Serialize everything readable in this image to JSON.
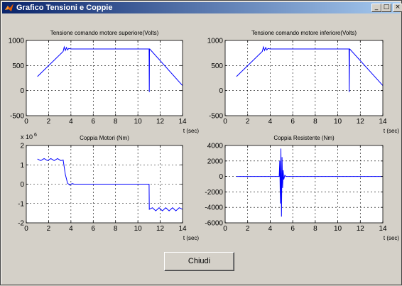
{
  "window": {
    "title": "Grafico Tensioni e Coppie",
    "minimize_glyph": "_",
    "maximize_glyph": "□",
    "close_glyph": "×",
    "icon": "matlab-icon"
  },
  "close_button": {
    "label": "Chiudi"
  },
  "chart_data": [
    {
      "type": "line",
      "title": "Tensione comando motore superiore(Volts)",
      "xlabel": "t (sec)",
      "ylabel": "",
      "xlim": [
        0,
        14
      ],
      "ylim": [
        -500,
        1000
      ],
      "xticks": [
        0,
        2,
        4,
        6,
        8,
        10,
        12,
        14
      ],
      "yticks": [
        -500,
        0,
        500,
        1000
      ],
      "grid": true,
      "exponent_label": "",
      "series": [
        {
          "color": "#0000ff",
          "x": [
            1,
            3.3,
            3.4,
            3.5,
            3.6,
            3.7,
            3.8,
            4.0,
            4.5,
            11,
            11.02,
            11.04,
            11.06,
            14
          ],
          "y": [
            280,
            780,
            870,
            800,
            860,
            810,
            840,
            830,
            830,
            830,
            -30,
            830,
            830,
            100
          ]
        }
      ]
    },
    {
      "type": "line",
      "title": "Tensione comando motore inferiore(Volts)",
      "xlabel": "t (sec)",
      "ylabel": "",
      "xlim": [
        0,
        14
      ],
      "ylim": [
        -500,
        1000
      ],
      "xticks": [
        0,
        2,
        4,
        6,
        8,
        10,
        12,
        14
      ],
      "yticks": [
        -500,
        0,
        500,
        1000
      ],
      "grid": true,
      "exponent_label": "",
      "series": [
        {
          "color": "#0000ff",
          "x": [
            1,
            3.3,
            3.4,
            3.5,
            3.6,
            3.7,
            3.8,
            4.0,
            4.5,
            11,
            11.02,
            11.04,
            11.06,
            14
          ],
          "y": [
            280,
            780,
            870,
            800,
            860,
            810,
            840,
            830,
            830,
            830,
            -30,
            830,
            830,
            100
          ]
        }
      ]
    },
    {
      "type": "line",
      "title": "Coppia Motori (Nm)",
      "xlabel": "t (sec)",
      "ylabel": "",
      "xlim": [
        0,
        14
      ],
      "ylim": [
        -2,
        2
      ],
      "xticks": [
        0,
        2,
        4,
        6,
        8,
        10,
        12,
        14
      ],
      "yticks": [
        -2,
        -1,
        0,
        1,
        2
      ],
      "grid": true,
      "exponent_label": "x 10",
      "exponent_power": "6",
      "series": [
        {
          "color": "#0000ff",
          "x": [
            1,
            1.3,
            1.6,
            1.9,
            2.2,
            2.5,
            2.8,
            3.1,
            3.3,
            3.5,
            3.7,
            3.9,
            4.1,
            4.3,
            4.6,
            11,
            11.02,
            11.3,
            11.6,
            11.9,
            12.2,
            12.5,
            12.8,
            13.1,
            13.4,
            13.7,
            14
          ],
          "y": [
            1.3,
            1.22,
            1.32,
            1.22,
            1.32,
            1.22,
            1.32,
            1.22,
            1.25,
            0.5,
            0.05,
            -0.05,
            0.03,
            0,
            0,
            0,
            -1.3,
            -1.22,
            -1.38,
            -1.22,
            -1.38,
            -1.22,
            -1.38,
            -1.22,
            -1.38,
            -1.22,
            -1.3
          ]
        }
      ]
    },
    {
      "type": "line",
      "title": "Coppia Resistente (Nm)",
      "xlabel": "t (sec)",
      "ylabel": "",
      "xlim": [
        0,
        14
      ],
      "ylim": [
        -6000,
        4000
      ],
      "xticks": [
        0,
        2,
        4,
        6,
        8,
        10,
        12,
        14
      ],
      "yticks": [
        -6000,
        -4000,
        -2000,
        0,
        2000,
        4000
      ],
      "grid": true,
      "exponent_label": "",
      "series": [
        {
          "color": "#0000ff",
          "x": [
            1,
            4.8,
            4.85,
            4.9,
            4.95,
            5.0,
            5.05,
            5.1,
            5.15,
            5.2,
            5.3,
            5.4,
            14
          ],
          "y": [
            0,
            0,
            2000,
            -3500,
            3600,
            -5200,
            2500,
            -1500,
            800,
            -400,
            150,
            0,
            0
          ]
        }
      ]
    }
  ]
}
